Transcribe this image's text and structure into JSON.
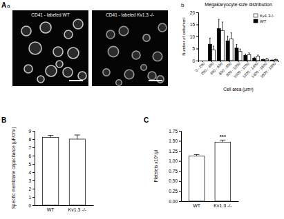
{
  "images": {
    "panel_label": "A",
    "sub_label": "a",
    "items": [
      {
        "title": "CD41 - labeled WT"
      },
      {
        "title": "CD41 - labeled Kv1.3 -/-"
      }
    ]
  },
  "chart_data": [
    {
      "type": "bar",
      "panel_label": "b",
      "title": "Megakaryocyte size distribution",
      "x_label": "Cell area (μm²)",
      "y_label": "Number of cells/mm²",
      "categories": [
        "0 - 200",
        "200 - 400",
        "400 - 600",
        "600 - 800",
        "800 - 1000",
        "1000 - 1200",
        "1200 - 1400",
        "1400 - 1600",
        "1600 - 1800"
      ],
      "series": [
        {
          "name": "WT",
          "color": "#000000",
          "values": [
            0,
            6.8,
            13.3,
            8.2,
            5.2,
            2.2,
            1.0,
            0.4,
            0.2
          ],
          "errors": [
            0,
            2.5,
            3.8,
            2.0,
            1.5,
            0.5,
            0.4,
            0.2,
            0.1
          ]
        },
        {
          "name": "Kv1.3-/-",
          "color": "#ffffff",
          "values": [
            0,
            4.5,
            12.5,
            9.0,
            3.8,
            2.5,
            1.8,
            0.6,
            0.4
          ],
          "errors": [
            0,
            1.5,
            3.5,
            2.5,
            1.0,
            0.7,
            0.5,
            0.3,
            0.2
          ]
        }
      ],
      "ylim": [
        0,
        20
      ],
      "yticks": [
        0,
        5,
        10,
        15,
        20
      ],
      "legend": "top-right"
    },
    {
      "type": "bar",
      "panel_label": "B",
      "y_label": "Specific membrane capacitance (μF/cm²)",
      "categories": [
        "WT",
        "Kv1.3 -/-"
      ],
      "values": [
        8.2,
        8.0
      ],
      "errors": [
        0.25,
        0.5
      ],
      "color": "#ffffff",
      "ylim": [
        0,
        9
      ],
      "yticks": [
        0,
        1,
        2,
        3,
        4,
        5,
        6,
        7,
        8,
        9
      ]
    },
    {
      "type": "bar",
      "panel_label": "C",
      "y_label": "Platelets x10⁶/μl",
      "categories": [
        "WT",
        "Kv1.3 -/-"
      ],
      "values": [
        1.12,
        1.47
      ],
      "errors": [
        0.04,
        0.05
      ],
      "color": "#ffffff",
      "ylim": [
        0,
        1.75
      ],
      "yticks": [
        {
          "value": 0,
          "label": "0.00"
        },
        {
          "value": 0.25,
          "label": "0.25"
        },
        {
          "value": 0.5,
          "label": "0.50"
        },
        {
          "value": 0.75,
          "label": "0.75"
        },
        {
          "value": 1,
          "label": "1.00"
        },
        {
          "value": 1.25,
          "label": "1.25"
        },
        {
          "value": 1.5,
          "label": "1.50"
        },
        {
          "value": 1.75,
          "label": "1.75"
        }
      ],
      "annotations": [
        {
          "text": "***",
          "x": "Kv1.3 -/-"
        }
      ]
    }
  ]
}
